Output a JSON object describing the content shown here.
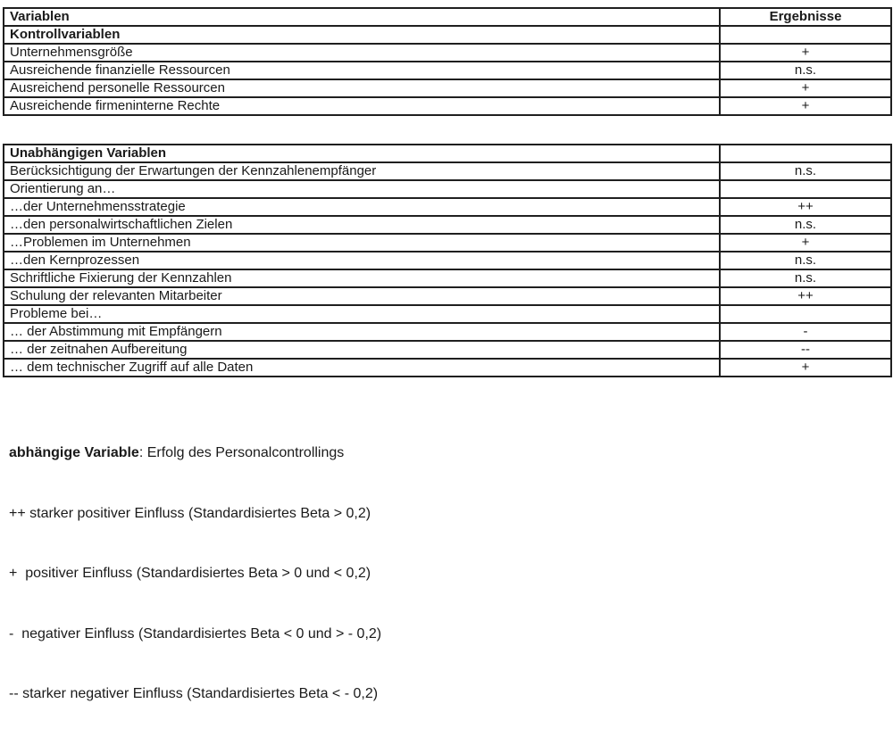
{
  "tables": [
    {
      "name": "control-variables",
      "header": {
        "label": "Variablen",
        "value": "Ergebnisse"
      },
      "rows": [
        {
          "label": "Kontrollvariablen",
          "value": "",
          "bold": true
        },
        {
          "label": "Unternehmensgröße",
          "value": "+",
          "bold": false
        },
        {
          "label": "Ausreichende finanzielle Ressourcen",
          "value": "n.s.",
          "bold": false
        },
        {
          "label": "Ausreichend personelle Ressourcen",
          "value": "+",
          "bold": false
        },
        {
          "label": "Ausreichende firmeninterne Rechte",
          "value": "+",
          "bold": false
        }
      ]
    },
    {
      "name": "independent-variables",
      "header": {
        "label": "Unabhängigen Variablen",
        "value": ""
      },
      "rows": [
        {
          "label": "Berücksichtigung der Erwartungen der Kennzahlenempfänger",
          "value": "n.s.",
          "bold": false
        },
        {
          "label": "Orientierung an…",
          "value": "",
          "bold": false
        },
        {
          "label": "…der Unternehmensstrategie",
          "value": "++",
          "bold": false
        },
        {
          "label": "…den personalwirtschaftlichen Zielen",
          "value": "n.s.",
          "bold": false
        },
        {
          "label": "…Problemen im Unternehmen",
          "value": "+",
          "bold": false
        },
        {
          "label": "…den Kernprozessen",
          "value": "n.s.",
          "bold": false
        },
        {
          "label": "Schriftliche Fixierung der Kennzahlen",
          "value": "n.s.",
          "bold": false
        },
        {
          "label": "Schulung der relevanten Mitarbeiter",
          "value": "++",
          "bold": false
        },
        {
          "label": "Probleme bei…",
          "value": "",
          "bold": false
        },
        {
          "label": "… der Abstimmung mit Empfängern",
          "value": "-",
          "bold": false
        },
        {
          "label": "… der zeitnahen Aufbereitung",
          "value": "--",
          "bold": false
        },
        {
          "label": "… dem technischer Zugriff auf alle Daten",
          "value": "+",
          "bold": false
        }
      ]
    }
  ],
  "footer": {
    "dependent_variable_label": "abhängige Variable",
    "dependent_variable_rest": ": Erfolg des Personalcontrollings",
    "legend": [
      "++ starker positiver Einfluss (Standardisiertes Beta > 0,2)",
      "+  positiver Einfluss (Standardisiertes Beta > 0 und < 0,2)",
      "-  negativer Einfluss (Standardisiertes Beta < 0 und > - 0,2)",
      "-- starker negativer Einfluss (Standardisiertes Beta < - 0,2)"
    ]
  }
}
